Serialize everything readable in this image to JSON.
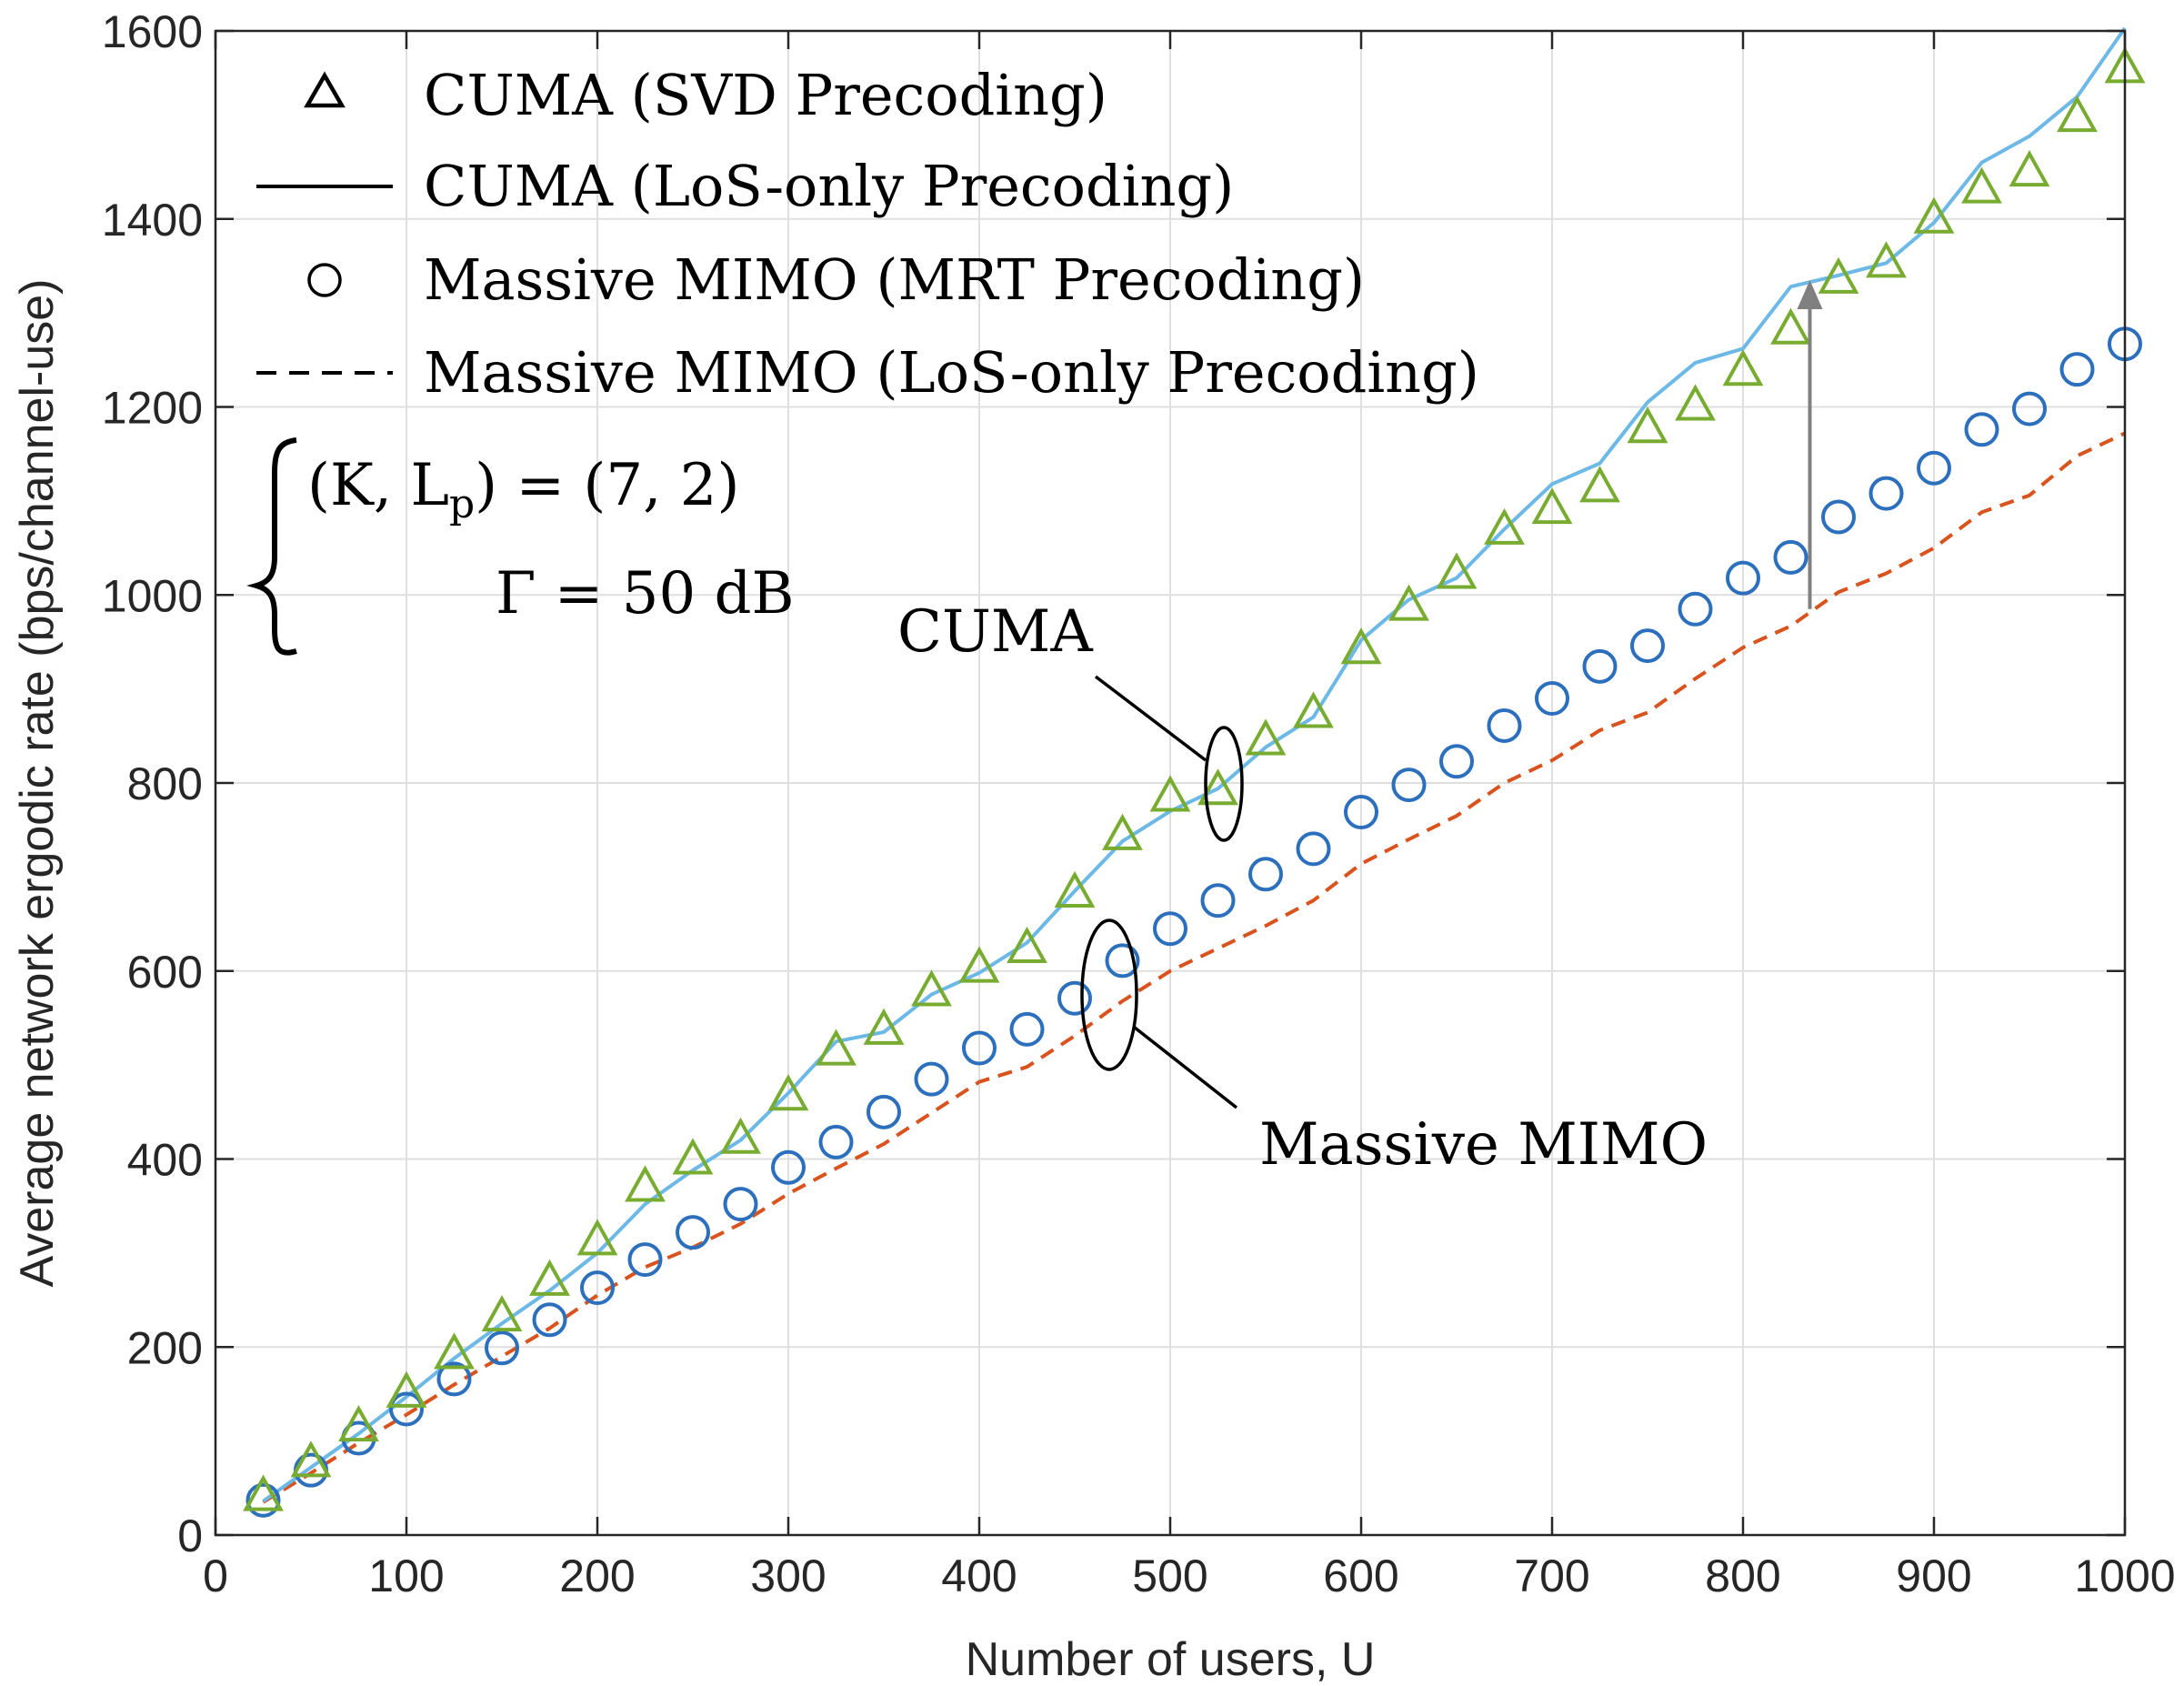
{
  "chart_data": {
    "type": "line",
    "title": "",
    "xlabel": "Number of users, U",
    "ylabel": "Average network ergodic rate (bps/channel-use)",
    "xlim": [
      0,
      1000
    ],
    "ylim": [
      0,
      1600
    ],
    "xticks": [
      "0",
      "100",
      "200",
      "300",
      "400",
      "500",
      "600",
      "700",
      "800",
      "900",
      "1000"
    ],
    "yticks": [
      "0",
      "200",
      "400",
      "600",
      "800",
      "1000",
      "1200",
      "1400",
      "1600"
    ],
    "grid": true,
    "legend_position": "top-left",
    "x": [
      25,
      50,
      75,
      100,
      125,
      150,
      175,
      200,
      225,
      250,
      275,
      300,
      325,
      350,
      375,
      400,
      425,
      450,
      475,
      500,
      525,
      550,
      575,
      600,
      625,
      650,
      675,
      700,
      725,
      750,
      775,
      800,
      825,
      850,
      875,
      900,
      925,
      950,
      975,
      1000
    ],
    "series": [
      {
        "name": "CUMA (SVD Precoding)",
        "style": "triangle-markers",
        "color": "#77ac30",
        "values": [
          41,
          77,
          115,
          151,
          192,
          232,
          270,
          313,
          370,
          399,
          421,
          467,
          515,
          537,
          578,
          603,
          624,
          683,
          744,
          785,
          792,
          845,
          874,
          942,
          988,
          1022,
          1069,
          1091,
          1114,
          1177,
          1201,
          1238,
          1282,
          1336,
          1353,
          1400,
          1432,
          1450,
          1508,
          1560
        ]
      },
      {
        "name": "CUMA (LoS-only Precoding)",
        "style": "solid-line",
        "color": "#6cb8e6",
        "values": [
          36,
          72,
          108,
          147,
          188,
          225,
          260,
          300,
          352,
          388,
          420,
          470,
          525,
          535,
          575,
          598,
          630,
          685,
          738,
          770,
          794,
          838,
          870,
          952,
          995,
          1018,
          1070,
          1118,
          1140,
          1205,
          1247,
          1262,
          1328,
          1340,
          1353,
          1396,
          1460,
          1488,
          1530,
          1603
        ]
      },
      {
        "name": "Massive MIMO (MRT Precoding)",
        "style": "circle-markers",
        "color": "#2b6fbd",
        "values": [
          37,
          69,
          103,
          134,
          166,
          199,
          229,
          263,
          293,
          322,
          352,
          391,
          418,
          450,
          485,
          518,
          538,
          571,
          611,
          645,
          675,
          703,
          730,
          769,
          798,
          823,
          861,
          890,
          924,
          946,
          985,
          1018,
          1040,
          1083,
          1108,
          1135,
          1176,
          1198,
          1240,
          1267
        ]
      },
      {
        "name": "Massive MIMO (LoS-only Precoding)",
        "style": "dashed-line",
        "color": "#d9531e",
        "values": [
          35,
          66,
          98,
          128,
          160,
          190,
          220,
          255,
          285,
          306,
          331,
          363,
          390,
          416,
          449,
          482,
          498,
          531,
          568,
          600,
          624,
          648,
          675,
          714,
          740,
          765,
          800,
          824,
          856,
          875,
          911,
          944,
          967,
          1003,
          1023,
          1050,
          1088,
          1106,
          1148,
          1172
        ]
      }
    ],
    "annotations": {
      "params_line1": "(K, L_p) = (7, 2)",
      "params_line1_main": "(K, L",
      "params_line1_sub": "p",
      "params_line1_tail": ") = (7, 2)",
      "params_line2": "Γ = 50 dB",
      "cuma_label": "CUMA",
      "massive_mimo_label": "Massive MIMO",
      "arrow": {
        "x": 835,
        "from_y": 985,
        "to_y": 1335,
        "color": "#808080"
      }
    }
  }
}
